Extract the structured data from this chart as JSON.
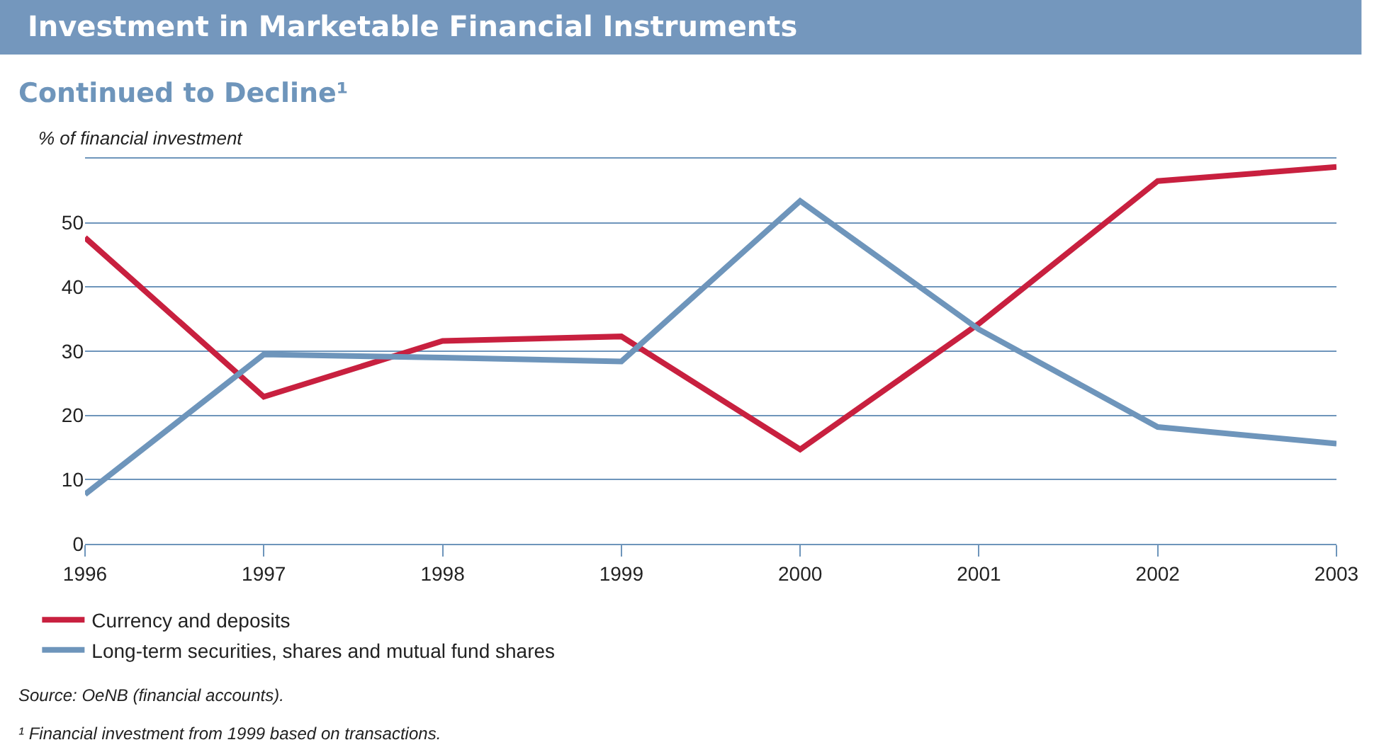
{
  "chart_data": {
    "type": "line",
    "title": "Investment in Marketable Financial Instruments",
    "subtitle": "Continued to Decline¹",
    "ylabel": "% of financial investment",
    "x": [
      1996,
      1997,
      1998,
      1999,
      2000,
      2001,
      2002,
      2003
    ],
    "series": [
      {
        "name": "Currency and deposits",
        "color": "#c8203f",
        "values": [
          47.7,
          22.9,
          31.6,
          32.3,
          14.7,
          34.3,
          56.5,
          58.7
        ]
      },
      {
        "name": "Long-term securities, shares and mutual fund shares",
        "color": "#6e95bb",
        "values": [
          7.7,
          29.5,
          29.0,
          28.4,
          53.4,
          33.4,
          18.2,
          15.6
        ]
      }
    ],
    "xlim": [
      1996,
      2003
    ],
    "xticks": [
      1996,
      1997,
      1998,
      1999,
      2000,
      2001,
      2002,
      2003
    ],
    "ylim": [
      0,
      60
    ],
    "yticks": [
      0,
      10,
      20,
      30,
      40,
      50,
      {
        "value": 60,
        "label": null
      }
    ],
    "grid": "y",
    "legend": "bottom",
    "marker": "none",
    "line_style": "solid",
    "annotations": [
      "Source: OeNB (financial accounts).",
      "¹ Financial investment from 1999 based on transactions."
    ]
  }
}
